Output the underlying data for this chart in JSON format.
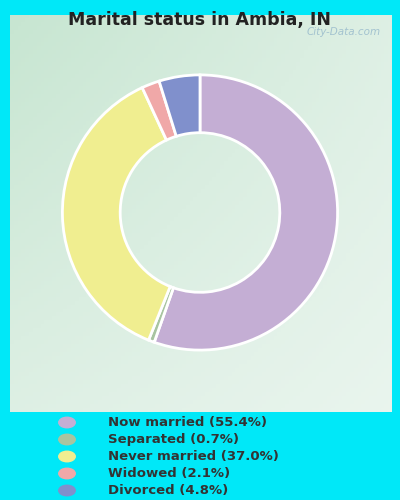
{
  "title": "Marital status in Ambia, IN",
  "slices": [
    {
      "label": "Now married (55.4%)",
      "value": 55.4,
      "color": "#c4aed4"
    },
    {
      "label": "Separated (0.7%)",
      "value": 0.7,
      "color": "#a8c4a0"
    },
    {
      "label": "Never married (37.0%)",
      "value": 37.0,
      "color": "#f0ee90"
    },
    {
      "label": "Widowed (2.1%)",
      "value": 2.1,
      "color": "#f0a8a8"
    },
    {
      "label": "Divorced (4.8%)",
      "value": 4.8,
      "color": "#8090cc"
    }
  ],
  "legend_colors": [
    "#c4aed4",
    "#a8c4a0",
    "#f0ee90",
    "#f0a8a8",
    "#8090cc"
  ],
  "legend_labels": [
    "Now married (55.4%)",
    "Separated (0.7%)",
    "Never married (37.0%)",
    "Widowed (2.1%)",
    "Divorced (4.8%)"
  ],
  "bg_cyan": "#00e8f8",
  "bg_panel_top_left": "#c8e8d0",
  "bg_panel_bottom_right": "#e8f4e8",
  "title_color": "#222222",
  "legend_text_color": "#333333",
  "watermark": "City-Data.com",
  "startangle": 90,
  "donut_width": 0.42
}
